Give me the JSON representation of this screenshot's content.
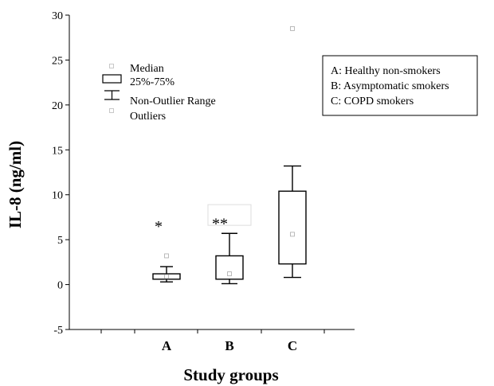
{
  "chart_data": {
    "type": "box",
    "xlabel": "Study groups",
    "ylabel": "IL-8 (ng/ml)",
    "ylim": [
      -5,
      30
    ],
    "yticks": [
      -5,
      0,
      5,
      10,
      15,
      20,
      25,
      30
    ],
    "grid": false,
    "categories": [
      "A",
      "B",
      "C"
    ],
    "boxes": [
      {
        "category": "A",
        "whisker_low": 0.3,
        "q1": 0.6,
        "median": 0.9,
        "q3": 1.2,
        "whisker_high": 2.0,
        "outliers": [
          3.2
        ],
        "annotation": "*"
      },
      {
        "category": "B",
        "whisker_low": 0.1,
        "q1": 0.6,
        "median": 1.2,
        "q3": 3.2,
        "whisker_high": 5.7,
        "outliers": [],
        "annotation": "**"
      },
      {
        "category": "C",
        "whisker_low": 0.8,
        "q1": 2.3,
        "median": 5.6,
        "q3": 10.4,
        "whisker_high": 13.2,
        "outliers": [
          28.5
        ],
        "annotation": ""
      }
    ],
    "legend_symbols": {
      "position": "top-left",
      "items": [
        "Median",
        "25%-75%",
        "Non-Outlier Range",
        "Outliers"
      ]
    },
    "legend_groups": {
      "position": "top-right",
      "items": [
        "A: Healthy non-smokers",
        "B: Asymptomatic smokers",
        "C: COPD smokers"
      ]
    }
  }
}
